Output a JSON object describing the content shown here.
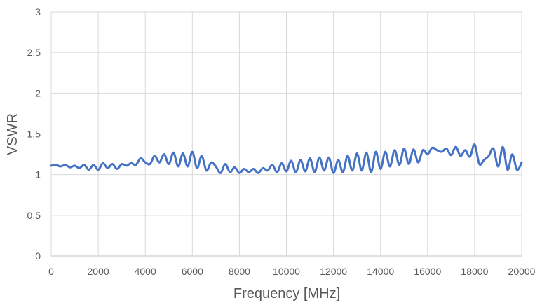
{
  "chart_data": {
    "type": "line",
    "title": "",
    "xlabel": "Frequency [MHz]",
    "ylabel": "VSWR",
    "xlim": [
      0,
      20000
    ],
    "ylim": [
      0,
      3
    ],
    "x_ticks": [
      "0",
      "2000",
      "4000",
      "6000",
      "8000",
      "10000",
      "12000",
      "14000",
      "16000",
      "18000",
      "20000"
    ],
    "y_ticks": [
      "0",
      "0,5",
      "1",
      "1,5",
      "2",
      "2,5",
      "3"
    ],
    "grid": true,
    "legend": "none",
    "series": [
      {
        "color": "#4472C4",
        "x": [
          0,
          200,
          400,
          600,
          800,
          1000,
          1200,
          1400,
          1600,
          1800,
          2000,
          2200,
          2400,
          2600,
          2800,
          3000,
          3200,
          3400,
          3600,
          3800,
          4000,
          4200,
          4400,
          4600,
          4800,
          5000,
          5200,
          5400,
          5600,
          5800,
          6000,
          6200,
          6400,
          6600,
          6800,
          7000,
          7200,
          7400,
          7600,
          7800,
          8000,
          8200,
          8400,
          8600,
          8800,
          9000,
          9200,
          9400,
          9600,
          9800,
          10000,
          10200,
          10400,
          10600,
          10800,
          11000,
          11200,
          11400,
          11600,
          11800,
          12000,
          12200,
          12400,
          12600,
          12800,
          13000,
          13200,
          13400,
          13600,
          13800,
          14000,
          14200,
          14400,
          14600,
          14800,
          15000,
          15200,
          15400,
          15600,
          15800,
          16000,
          16200,
          16400,
          16600,
          16800,
          17000,
          17200,
          17400,
          17600,
          17800,
          18000,
          18200,
          18400,
          18600,
          18800,
          19000,
          19200,
          19400,
          19600,
          19800,
          20000
        ],
        "values": [
          1.11,
          1.12,
          1.1,
          1.12,
          1.09,
          1.11,
          1.08,
          1.12,
          1.06,
          1.12,
          1.06,
          1.14,
          1.08,
          1.13,
          1.07,
          1.13,
          1.11,
          1.14,
          1.12,
          1.2,
          1.15,
          1.13,
          1.23,
          1.15,
          1.25,
          1.13,
          1.27,
          1.1,
          1.26,
          1.1,
          1.28,
          1.08,
          1.23,
          1.05,
          1.15,
          1.1,
          1.02,
          1.13,
          1.03,
          1.09,
          1.02,
          1.07,
          1.03,
          1.07,
          1.02,
          1.08,
          1.05,
          1.12,
          1.03,
          1.14,
          1.04,
          1.17,
          1.03,
          1.18,
          1.04,
          1.2,
          1.03,
          1.21,
          1.05,
          1.21,
          1.02,
          1.18,
          1.03,
          1.23,
          1.05,
          1.26,
          1.05,
          1.27,
          1.03,
          1.28,
          1.07,
          1.28,
          1.1,
          1.3,
          1.12,
          1.32,
          1.13,
          1.31,
          1.15,
          1.3,
          1.25,
          1.33,
          1.3,
          1.28,
          1.32,
          1.24,
          1.34,
          1.23,
          1.3,
          1.22,
          1.37,
          1.13,
          1.18,
          1.23,
          1.32,
          1.1,
          1.34,
          1.06,
          1.25,
          1.06,
          1.15
        ]
      }
    ]
  }
}
